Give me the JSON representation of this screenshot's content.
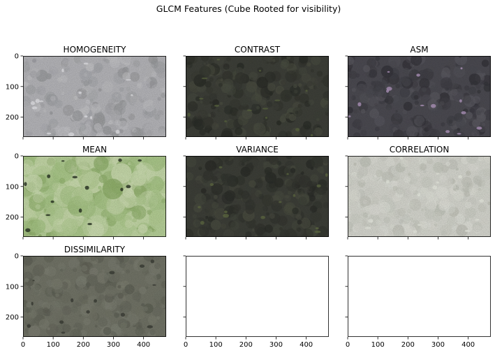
{
  "chart_data": {
    "type": "image-grid",
    "title": "GLCM Features (Cube Rooted for visibility)",
    "grid": {
      "rows": 3,
      "cols": 3
    },
    "x_ticks": [
      0,
      100,
      200,
      300,
      400
    ],
    "y_ticks": [
      0,
      100,
      200
    ],
    "xlim": [
      0,
      475
    ],
    "ylim": [
      265,
      0
    ],
    "shared_x": true,
    "shared_y": true,
    "panels": [
      {
        "title": "HOMOGENEITY",
        "image": true,
        "palette": [
          "#b8b8bc",
          "#a9aaae",
          "#c6c6c9",
          "#9c9da0"
        ],
        "blotch": "#e8e8ec"
      },
      {
        "title": "CONTRAST",
        "image": true,
        "palette": [
          "#3e4039",
          "#34362f",
          "#4a4d41",
          "#2a2c27"
        ],
        "blotch": "#5a6540"
      },
      {
        "title": "ASM",
        "image": true,
        "palette": [
          "#4c4b52",
          "#414047",
          "#5a5960",
          "#36353b"
        ],
        "blotch": "#b79bc4"
      },
      {
        "title": "MEAN",
        "image": true,
        "palette": [
          "#b9d39a",
          "#a8c786",
          "#cfe0b3",
          "#8fb06a"
        ],
        "blotch": "#263020"
      },
      {
        "title": "VARIANCE",
        "image": true,
        "palette": [
          "#3d3f38",
          "#33352f",
          "#494c40",
          "#2b2d28"
        ],
        "blotch": "#606b44"
      },
      {
        "title": "CORRELATION",
        "image": true,
        "palette": [
          "#d9dad2",
          "#cfd1c8",
          "#e3e4dc",
          "#c5c7bd"
        ],
        "blotch": "#eef0e6"
      },
      {
        "title": "DISSIMILARITY",
        "image": true,
        "palette": [
          "#737568",
          "#696b5f",
          "#7e8073",
          "#5f6156"
        ],
        "blotch": "#3a3c34"
      },
      {
        "title": "",
        "image": false
      },
      {
        "title": "",
        "image": false
      }
    ]
  }
}
